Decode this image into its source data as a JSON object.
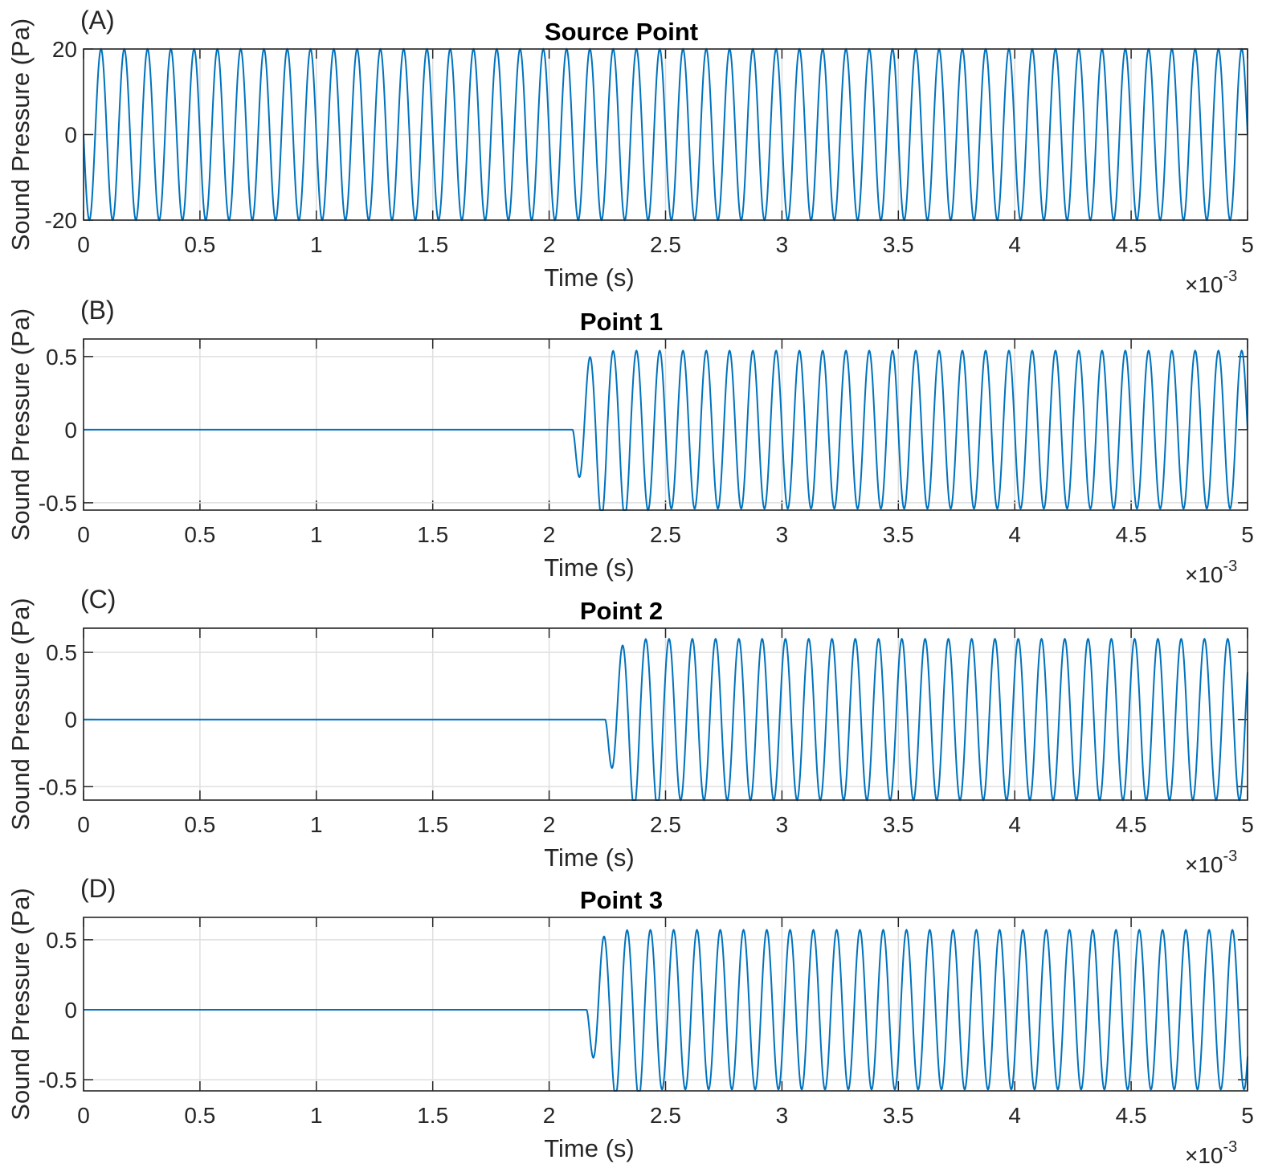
{
  "figure": {
    "background": "#ffffff",
    "line_color": "#0072bd",
    "grid_color": "#dfdfdf",
    "axis_color": "#262626"
  },
  "chart_data": [
    {
      "type": "line",
      "panel_label": "(A)",
      "title": "Source Point",
      "xlabel": "Time (s)",
      "ylabel": "Sound Pressure (Pa)",
      "x_exponent": "-3",
      "x_exponent_base": "×10",
      "xlim": [
        0,
        5
      ],
      "ylim": [
        -20,
        20
      ],
      "xticks": [
        "0",
        "0.5",
        "1",
        "1.5",
        "2",
        "2.5",
        "3",
        "3.5",
        "4",
        "4.5",
        "5"
      ],
      "yticks": [
        {
          "value": -20,
          "label": "-20"
        },
        {
          "value": 0,
          "label": "0"
        },
        {
          "value": 20,
          "label": "20"
        }
      ],
      "grid": true,
      "series": [
        {
          "signal": "sine",
          "frequency_cycles_per_ms": 10,
          "start_time_ms": 0,
          "amplitude": 20,
          "initial_phase": "negative",
          "first_peaks": [],
          "initial_trough": -20
        }
      ]
    },
    {
      "type": "line",
      "panel_label": "(B)",
      "title": "Point 1",
      "xlabel": "Time (s)",
      "ylabel": "Sound Pressure (Pa)",
      "x_exponent": "-3",
      "x_exponent_base": "×10",
      "xlim": [
        0,
        5
      ],
      "ylim": [
        -0.55,
        0.62
      ],
      "xticks": [
        "0",
        "0.5",
        "1",
        "1.5",
        "2",
        "2.5",
        "3",
        "3.5",
        "4",
        "4.5",
        "5"
      ],
      "yticks": [
        {
          "value": -0.5,
          "label": "-0.5"
        },
        {
          "value": 0,
          "label": "0"
        },
        {
          "value": 0.5,
          "label": "0.5"
        }
      ],
      "grid": true,
      "series": [
        {
          "signal": "delayed sine",
          "frequency_cycles_per_ms": 10,
          "start_time_ms": 2.1,
          "amplitude": 0.54,
          "initial_phase": "negative",
          "first_peaks": [
            0.61,
            0.6,
            0.55
          ],
          "initial_trough": -0.54
        }
      ]
    },
    {
      "type": "line",
      "panel_label": "(C)",
      "title": "Point 2",
      "xlabel": "Time (s)",
      "ylabel": "Sound Pressure (Pa)",
      "x_exponent": "-3",
      "x_exponent_base": "×10",
      "xlim": [
        0,
        5
      ],
      "ylim": [
        -0.6,
        0.68
      ],
      "xticks": [
        "0",
        "0.5",
        "1",
        "1.5",
        "2",
        "2.5",
        "3",
        "3.5",
        "4",
        "4.5",
        "5"
      ],
      "yticks": [
        {
          "value": -0.5,
          "label": "-0.5"
        },
        {
          "value": 0,
          "label": "0"
        },
        {
          "value": 0.5,
          "label": "0.5"
        }
      ],
      "grid": true,
      "series": [
        {
          "signal": "delayed sine",
          "frequency_cycles_per_ms": 10,
          "start_time_ms": 2.24,
          "amplitude": 0.6,
          "initial_phase": "negative",
          "first_peaks": [
            0.67,
            0.66,
            0.6
          ],
          "initial_trough": -0.6
        }
      ]
    },
    {
      "type": "line",
      "panel_label": "(D)",
      "title": "Point 3",
      "xlabel": "Time (s)",
      "ylabel": "Sound Pressure (Pa)",
      "x_exponent": "-3",
      "x_exponent_base": "×10",
      "xlim": [
        0,
        5
      ],
      "ylim": [
        -0.58,
        0.66
      ],
      "xticks": [
        "0",
        "0.5",
        "1",
        "1.5",
        "2",
        "2.5",
        "3",
        "3.5",
        "4",
        "4.5",
        "5"
      ],
      "yticks": [
        {
          "value": -0.5,
          "label": "-0.5"
        },
        {
          "value": 0,
          "label": "0"
        },
        {
          "value": 0.5,
          "label": "0.5"
        }
      ],
      "grid": true,
      "series": [
        {
          "signal": "delayed sine",
          "frequency_cycles_per_ms": 10,
          "start_time_ms": 2.16,
          "amplitude": 0.57,
          "initial_phase": "negative",
          "first_peaks": [
            0.63,
            0.63,
            0.57
          ],
          "initial_trough": -0.57
        }
      ]
    }
  ]
}
